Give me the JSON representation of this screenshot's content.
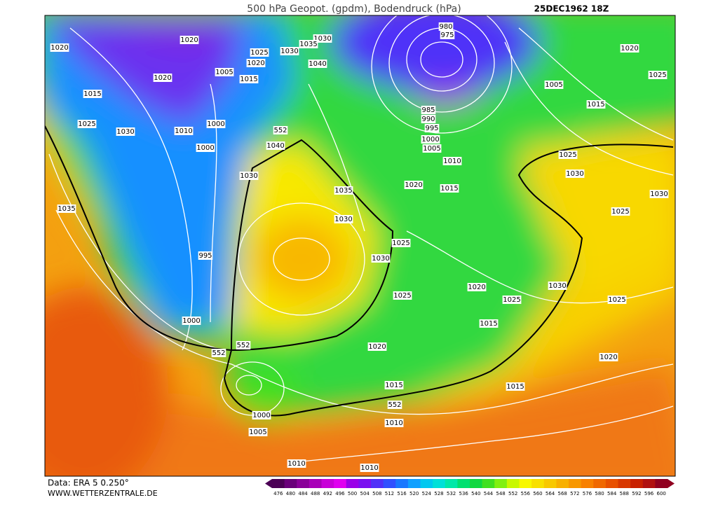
{
  "header": {
    "title": "500 hPa Geopot. (gpdm), Bodendruck (hPa)",
    "date": "25DEC1962 18Z"
  },
  "footer": {
    "source": "Data: ERA 5 0.250°",
    "url": "WWW.WETTERZENTRALE.DE"
  },
  "colorbar": {
    "labels": [
      476,
      480,
      484,
      488,
      492,
      496,
      500,
      504,
      508,
      512,
      516,
      520,
      524,
      528,
      532,
      536,
      540,
      544,
      548,
      552,
      556,
      560,
      564,
      568,
      572,
      576,
      580,
      584,
      588,
      592,
      596,
      600
    ],
    "colors": [
      "#4b0055",
      "#6a007a",
      "#8a0099",
      "#a800b8",
      "#c800d8",
      "#e000f0",
      "#9a00e8",
      "#7a10f0",
      "#5030f8",
      "#3050ff",
      "#1878ff",
      "#10a0ff",
      "#00c8f0",
      "#00e0d8",
      "#00e8a8",
      "#00e070",
      "#10d840",
      "#40e020",
      "#80f010",
      "#c8f800",
      "#f8f800",
      "#f8e000",
      "#f8c800",
      "#f8b000",
      "#f89800",
      "#f88000",
      "#f06800",
      "#e85000",
      "#d83800",
      "#c82000",
      "#b01010",
      "#900020"
    ]
  },
  "isobar_labels": [
    "1020",
    "1020",
    "1030",
    "1035",
    "1030",
    "1025",
    "1020",
    "1005",
    "1015",
    "1040",
    "1020",
    "1015",
    "1025",
    "1030",
    "1010",
    "1000",
    "552",
    "1000",
    "1040",
    "1030",
    "1035",
    "1035",
    "995",
    "1030",
    "1030",
    "1025",
    "1020",
    "1015",
    "1010",
    "1005",
    "1000",
    "995",
    "990",
    "985",
    "980",
    "975",
    "1005",
    "1015",
    "1020",
    "1025",
    "1025",
    "1030",
    "1030",
    "1025",
    "1030",
    "1025",
    "1025",
    "1020",
    "1015",
    "1025",
    "1020",
    "1000",
    "552",
    "552",
    "1015",
    "1000",
    "1005",
    "552",
    "1010",
    "1015",
    "1020",
    "1010",
    "1010"
  ]
}
